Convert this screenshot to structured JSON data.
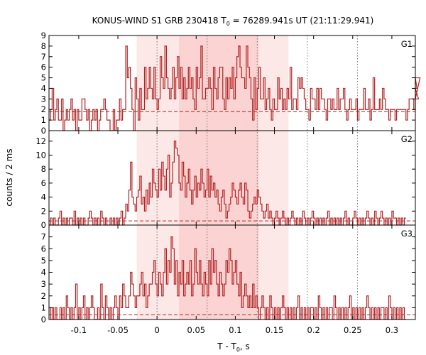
{
  "chart_data": {
    "type": "line",
    "title": "KONUS-WIND S1 GRB 230418 T",
    "title_sub": "0",
    "title_rest": " = 76289.941s UT (21:11:29.941)",
    "xlabel": "T - T",
    "xlabel_sub": "0",
    "xlabel_rest": ", s",
    "ylabel": "counts / 2 ms",
    "xlim": [
      -0.138,
      0.33
    ],
    "xticks": [
      -0.1,
      -0.05,
      0,
      0.05,
      0.1,
      0.15,
      0.2,
      0.25,
      0.3
    ],
    "xtick_labels": [
      "-0.1",
      "-0.05",
      "0",
      "0.05",
      "0.1",
      "0.15",
      "0.2",
      "0.25",
      "0.3"
    ],
    "bin_width": 0.002,
    "x_start": -0.138,
    "shaded_outer": [
      -0.026,
      0.168
    ],
    "shaded_inner": [
      0.028,
      0.13
    ],
    "vlines": [
      0,
      0.064,
      0.128,
      0.192,
      0.256
    ],
    "colors": {
      "series": "#b22222",
      "shade_outer": "#fde8e8",
      "shade_inner": "#fbd3d3"
    },
    "panels": [
      {
        "name": "G1",
        "ylim": [
          0,
          9
        ],
        "yticks": [
          0,
          1,
          2,
          3,
          4,
          5,
          6,
          7,
          8,
          9
        ],
        "ytick_labels": [
          "0",
          "1",
          "2",
          "3",
          "4",
          "5",
          "6",
          "7",
          "8",
          "9"
        ],
        "background": 1.8,
        "values": [
          1,
          2,
          4,
          1,
          2,
          3,
          1,
          1,
          3,
          0,
          1,
          2,
          1,
          2,
          3,
          1,
          2,
          0,
          2,
          1,
          1,
          3,
          3,
          2,
          1,
          2,
          0,
          1,
          2,
          1,
          2,
          0,
          1,
          2,
          2,
          3,
          2,
          1,
          1,
          0,
          0,
          2,
          0,
          1,
          1,
          3,
          1,
          2,
          2,
          8,
          5,
          6,
          4,
          2,
          0,
          5,
          3,
          1,
          4,
          2,
          2,
          6,
          3,
          4,
          6,
          4,
          3,
          6,
          3,
          2,
          3,
          7,
          5,
          4,
          8,
          5,
          4,
          3,
          4,
          6,
          3,
          5,
          7,
          4,
          6,
          3,
          5,
          3,
          4,
          6,
          4,
          5,
          3,
          2,
          6,
          4,
          5,
          8,
          3,
          3,
          4,
          4,
          5,
          4,
          2,
          6,
          4,
          3,
          5,
          6,
          6,
          3,
          2,
          5,
          3,
          5,
          4,
          6,
          3,
          5,
          7,
          8,
          6,
          5,
          5,
          4,
          8,
          6,
          5,
          3,
          1,
          5,
          2,
          4,
          6,
          3,
          3,
          5,
          2,
          3,
          4,
          2,
          1,
          3,
          2,
          2,
          5,
          3,
          4,
          2,
          3,
          2,
          4,
          3,
          6,
          2,
          3,
          3,
          2,
          5,
          4,
          5,
          4,
          3,
          2,
          2,
          1,
          4,
          3,
          3,
          2,
          4,
          2,
          4,
          3,
          3,
          2,
          1,
          3,
          3,
          2,
          3,
          2,
          2,
          4,
          2,
          3,
          3,
          4,
          2,
          1,
          2,
          3,
          2,
          2,
          2,
          3,
          1,
          2,
          2,
          2,
          4,
          2,
          2,
          3,
          1,
          2,
          5,
          2,
          2,
          2,
          3,
          2,
          4,
          3,
          2,
          2,
          1,
          2,
          2,
          2,
          1,
          2,
          2,
          2,
          2,
          2,
          2,
          1,
          2,
          3,
          3,
          3,
          2,
          5,
          4,
          3,
          5
        ]
      },
      {
        "name": "G2",
        "ylim": [
          0,
          13.5
        ],
        "yticks": [
          0,
          2,
          4,
          6,
          8,
          10,
          12
        ],
        "ytick_labels": [
          "0",
          "2",
          "4",
          "6",
          "8",
          "10",
          "12"
        ],
        "background": 0.6,
        "values": [
          0,
          1,
          0,
          1,
          0,
          0,
          1,
          2,
          0,
          1,
          0,
          1,
          0,
          1,
          1,
          0,
          2,
          0,
          1,
          0,
          1,
          0,
          1,
          0,
          0,
          1,
          2,
          1,
          0,
          1,
          0,
          1,
          0,
          2,
          1,
          0,
          1,
          0,
          0,
          1,
          0,
          1,
          0,
          1,
          0,
          1,
          2,
          0,
          1,
          3,
          2,
          5,
          9,
          4,
          3,
          2,
          4,
          5,
          7,
          3,
          4,
          2,
          5,
          3,
          6,
          4,
          8,
          6,
          5,
          4,
          8,
          5,
          9,
          7,
          5,
          8,
          10,
          4,
          6,
          9,
          12,
          11,
          10,
          6,
          5,
          9,
          7,
          4,
          6,
          8,
          5,
          3,
          5,
          7,
          4,
          6,
          5,
          8,
          6,
          4,
          5,
          8,
          4,
          7,
          5,
          6,
          4,
          5,
          3,
          2,
          4,
          5,
          3,
          1,
          2,
          3,
          4,
          6,
          5,
          4,
          3,
          5,
          6,
          4,
          3,
          6,
          5,
          2,
          1,
          2,
          3,
          4,
          3,
          5,
          4,
          3,
          2,
          1,
          2,
          3,
          1,
          2,
          1,
          0,
          1,
          2,
          1,
          0,
          1,
          2,
          1,
          0,
          1,
          0,
          1,
          2,
          1,
          0,
          1,
          0,
          1,
          0,
          2,
          1,
          0,
          1,
          0,
          1,
          2,
          1,
          0,
          1,
          0,
          1,
          0,
          1,
          0,
          1,
          2,
          0,
          1,
          0,
          1,
          0,
          1,
          0,
          1,
          0,
          1,
          2,
          0,
          1,
          0,
          0,
          1,
          2,
          1,
          0,
          1,
          0,
          1,
          0,
          1,
          2,
          1,
          0,
          1,
          0,
          2,
          1,
          0,
          1,
          2,
          1,
          0,
          1,
          0,
          1,
          0,
          2,
          1,
          1,
          0,
          1,
          0,
          1,
          0,
          1
        ]
      },
      {
        "name": "G3",
        "ylim": [
          0,
          8
        ],
        "yticks": [
          0,
          1,
          2,
          3,
          4,
          5,
          6,
          7
        ],
        "ytick_labels": [
          "0",
          "1",
          "2",
          "3",
          "4",
          "5",
          "6",
          "7"
        ],
        "background": 0.4,
        "values": [
          1,
          0,
          1,
          0,
          1,
          0,
          0,
          1,
          0,
          1,
          0,
          2,
          1,
          0,
          1,
          0,
          1,
          3,
          0,
          1,
          0,
          1,
          2,
          0,
          1,
          0,
          1,
          2,
          1,
          0,
          0,
          1,
          0,
          3,
          1,
          0,
          2,
          1,
          0,
          1,
          0,
          1,
          2,
          1,
          0,
          2,
          1,
          3,
          2,
          1,
          1,
          2,
          4,
          3,
          2,
          1,
          2,
          2,
          3,
          4,
          2,
          3,
          1,
          2,
          3,
          3,
          4,
          5,
          3,
          2,
          4,
          3,
          2,
          4,
          6,
          3,
          5,
          4,
          7,
          6,
          3,
          5,
          2,
          4,
          3,
          5,
          2,
          3,
          4,
          3,
          5,
          2,
          3,
          6,
          4,
          3,
          5,
          3,
          2,
          4,
          3,
          2,
          5,
          3,
          6,
          4,
          5,
          3,
          2,
          4,
          3,
          2,
          3,
          5,
          4,
          6,
          5,
          3,
          4,
          5,
          3,
          2,
          4,
          1,
          2,
          3,
          2,
          1,
          2,
          1,
          3,
          1,
          2,
          1,
          0,
          1,
          2,
          1,
          0,
          1,
          0,
          2,
          1,
          0,
          1,
          0,
          1,
          0,
          1,
          2,
          1,
          0,
          1,
          0,
          1,
          0,
          1,
          0,
          1,
          2,
          0,
          1,
          0,
          1,
          0,
          1,
          0,
          1,
          1,
          0,
          1,
          0,
          2,
          1,
          0,
          1,
          0,
          1,
          0,
          1,
          1,
          0,
          2,
          1,
          0,
          1,
          0,
          1,
          0,
          1,
          0,
          1,
          2,
          0,
          1,
          0,
          1,
          0,
          1,
          0,
          1,
          0,
          1,
          2,
          1,
          0,
          1,
          0,
          1,
          0,
          1,
          0,
          1,
          1,
          0,
          1,
          0,
          2,
          1,
          0,
          1,
          0,
          1,
          0,
          1,
          0,
          1,
          0
        ]
      }
    ]
  }
}
